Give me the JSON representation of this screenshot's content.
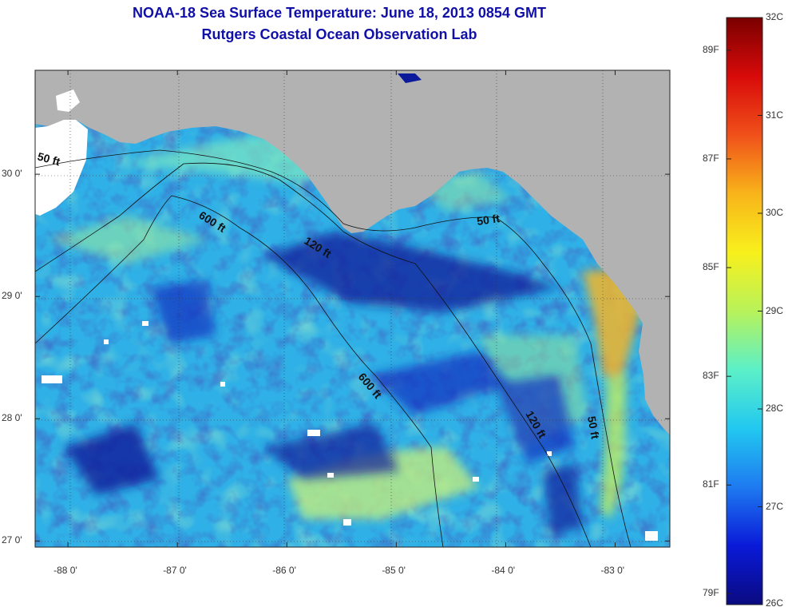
{
  "header": {
    "title_line1": "NOAA-18 Sea Surface Temperature:  June 18, 2013 0854 GMT",
    "title_line2": "Rutgers Coastal Ocean Observation Lab"
  },
  "map": {
    "lon_range": [
      -88.3,
      -82.5
    ],
    "lat_range": [
      26.95,
      30.85
    ],
    "x_ticks": [
      {
        "value": -88,
        "label": "-88 0'"
      },
      {
        "value": -87,
        "label": "-87 0'"
      },
      {
        "value": -86,
        "label": "-86 0'"
      },
      {
        "value": -85,
        "label": "-85 0'"
      },
      {
        "value": -84,
        "label": "-84 0'"
      },
      {
        "value": -83,
        "label": "-83 0'"
      }
    ],
    "y_ticks": [
      {
        "value": 30,
        "label": "30 0'"
      },
      {
        "value": 29,
        "label": "29 0'"
      },
      {
        "value": 28,
        "label": "28 0'"
      },
      {
        "value": 27,
        "label": "27 0'"
      }
    ],
    "contour_labels": [
      "50 ft",
      "600 ft",
      "120 ft",
      "50 ft",
      "600 ft",
      "120 ft",
      "50 ft"
    ],
    "colors": {
      "land": "#b2b2b2",
      "ocean_base": "#2fb0e6",
      "cloud": "#ffffff",
      "contour": "#111111"
    }
  },
  "colorbar": {
    "range_c": [
      26,
      32
    ],
    "celsius_labels": [
      {
        "value": 32,
        "label": "32C"
      },
      {
        "value": 31,
        "label": "31C"
      },
      {
        "value": 30,
        "label": "30C"
      },
      {
        "value": 29,
        "label": "29C"
      },
      {
        "value": 28,
        "label": "28C"
      },
      {
        "value": 27,
        "label": "27C"
      },
      {
        "value": 26,
        "label": "26C"
      }
    ],
    "fahrenheit_labels": [
      {
        "value": 89,
        "label": "89F"
      },
      {
        "value": 87,
        "label": "87F"
      },
      {
        "value": 85,
        "label": "85F"
      },
      {
        "value": 83,
        "label": "83F"
      },
      {
        "value": 81,
        "label": "81F"
      },
      {
        "value": 79,
        "label": "79F"
      }
    ],
    "gradient_stops": [
      "#0a0a80",
      "#0a1ad8",
      "#1e7af0",
      "#22c8f0",
      "#5cf0c8",
      "#b8f25a",
      "#f8f01c",
      "#f8b41a",
      "#f0501a",
      "#d80a0a",
      "#7a0000"
    ]
  }
}
